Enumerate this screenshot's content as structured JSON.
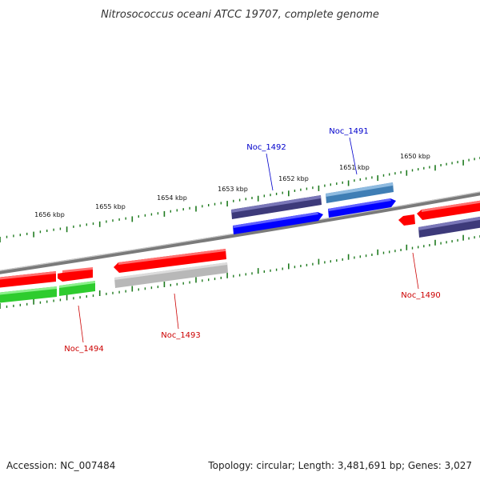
{
  "title": "Nitrosococcus oceani ATCC 19707, complete genome",
  "footer": {
    "accession": "Accession: NC_007484",
    "summary": "Topology: circular; Length: 3,481,691 bp; Genes: 3,027"
  },
  "colors": {
    "backbone": "#7a7a7a",
    "tick": "#1e7a1e",
    "forward_cds": "#0000ff",
    "reverse_cds": "#ff0000",
    "forward_label": "#0000cc",
    "reverse_label": "#cc0000",
    "cog_purple": "#3d3a7a",
    "cog_steel": "#3f7eb5",
    "cog_green": "#2ecc2e",
    "cog_gray": "#b8b8b8"
  },
  "scale_labels": [
    "1650 kbp",
    "1651 kbp",
    "1652 kbp",
    "1653 kbp",
    "1654 kbp",
    "1655 kbp",
    "1656 kbp"
  ],
  "genes": [
    {
      "name": "Noc_1490",
      "strand": "reverse"
    },
    {
      "name": "Noc_1491",
      "strand": "forward"
    },
    {
      "name": "Noc_1492",
      "strand": "forward"
    },
    {
      "name": "Noc_1493",
      "strand": "reverse"
    },
    {
      "name": "Noc_1494",
      "strand": "reverse"
    }
  ]
}
